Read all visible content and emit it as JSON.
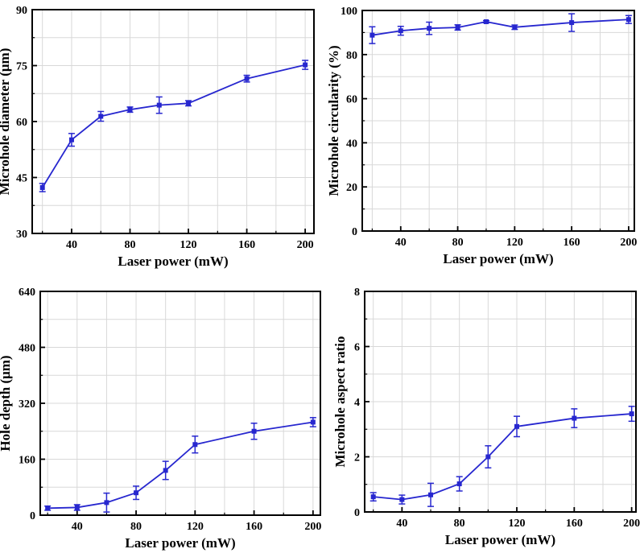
{
  "figure": {
    "background": "#ffffff",
    "accent_color": "#2727cf",
    "grid_color": "#d8d8d8",
    "axis_color": "#000000"
  },
  "chart_data": [
    {
      "type": "line",
      "name": "microhole-diameter-vs-laser-power",
      "xlabel": "Laser power (mW)",
      "ylabel": "Microhole diameter (μm)",
      "x": [
        20,
        40,
        60,
        80,
        100,
        120,
        160,
        200
      ],
      "y": [
        42.3,
        55.1,
        61.4,
        63.2,
        64.4,
        64.9,
        71.5,
        75.2
      ],
      "yerr": [
        1.1,
        1.7,
        1.3,
        0.7,
        2.2,
        0.7,
        0.9,
        1.2
      ],
      "xlim": [
        13,
        206
      ],
      "ylim": [
        30,
        90
      ],
      "xticks": [
        40,
        80,
        120,
        160,
        200
      ],
      "yticks": [
        30,
        45,
        60,
        75,
        90
      ],
      "xgrid_step": 20,
      "ygrid_step": 7.5,
      "grid": true,
      "legend": null,
      "marker": "square",
      "line_color": "#2727cf"
    },
    {
      "type": "line",
      "name": "microhole-circularity-vs-laser-power",
      "xlabel": "Laser power (mW)",
      "ylabel": "Microhole circularity (%)",
      "x": [
        20,
        40,
        60,
        80,
        100,
        120,
        160,
        200
      ],
      "y": [
        88.8,
        90.8,
        91.9,
        92.3,
        94.9,
        92.4,
        94.5,
        95.9
      ],
      "yerr": [
        3.8,
        2.0,
        2.8,
        1.2,
        0.5,
        1.0,
        4.0,
        1.8
      ],
      "xlim": [
        13,
        204
      ],
      "ylim": [
        0,
        100
      ],
      "xticks": [
        40,
        80,
        120,
        160,
        200
      ],
      "yticks": [
        0,
        20,
        40,
        60,
        80,
        100
      ],
      "xgrid_step": 20,
      "ygrid_step": 10,
      "grid": true,
      "legend": null,
      "marker": "square",
      "line_color": "#2727cf"
    },
    {
      "type": "line",
      "name": "hole-depth-vs-laser-power",
      "xlabel": "Laser power (mW)",
      "ylabel": "Hole depth (μm)",
      "x": [
        20,
        40,
        60,
        80,
        100,
        120,
        160,
        200
      ],
      "y": [
        20,
        22,
        36,
        64,
        128,
        202,
        240,
        266
      ],
      "yerr": [
        6,
        8,
        27,
        19,
        26,
        24,
        23,
        13
      ],
      "xlim": [
        15,
        205
      ],
      "ylim": [
        0,
        640
      ],
      "xticks": [
        40,
        80,
        120,
        160,
        200
      ],
      "yticks": [
        0,
        160,
        320,
        480,
        640
      ],
      "xgrid_step": 20,
      "ygrid_step": 80,
      "grid": true,
      "legend": null,
      "marker": "square",
      "line_color": "#2727cf"
    },
    {
      "type": "line",
      "name": "microhole-aspect-ratio-vs-laser-power",
      "xlabel": "Laser power (mW)",
      "ylabel": "Microhole aspect ratio",
      "x": [
        20,
        40,
        60,
        80,
        100,
        120,
        160,
        200
      ],
      "y": [
        0.55,
        0.45,
        0.62,
        1.02,
        2.0,
        3.1,
        3.4,
        3.56
      ],
      "yerr": [
        0.15,
        0.16,
        0.42,
        0.26,
        0.4,
        0.37,
        0.34,
        0.27
      ],
      "xlim": [
        14,
        203
      ],
      "ylim": [
        0,
        8
      ],
      "xticks": [
        40,
        80,
        120,
        160,
        200
      ],
      "yticks": [
        0,
        2,
        4,
        6,
        8
      ],
      "xgrid_step": 20,
      "ygrid_step": 1,
      "grid": true,
      "legend": null,
      "marker": "square",
      "line_color": "#2727cf"
    }
  ]
}
